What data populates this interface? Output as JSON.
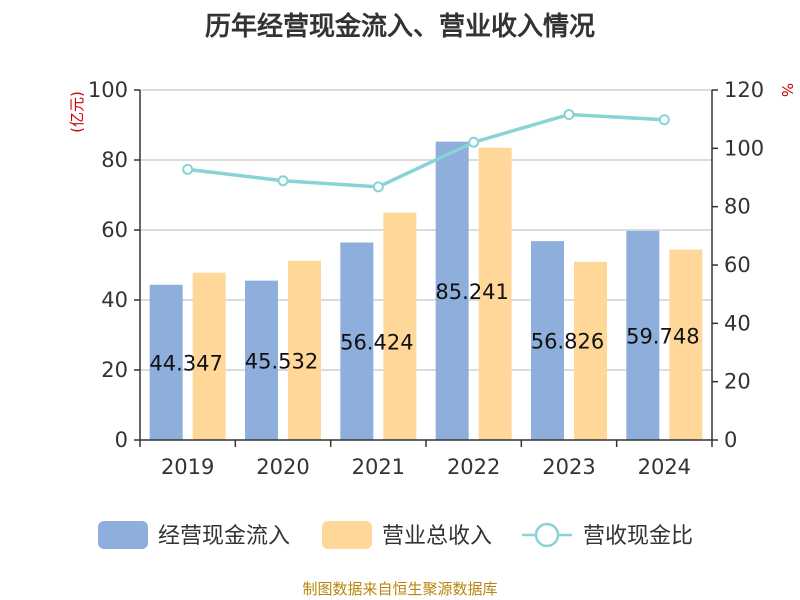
{
  "chart_data": {
    "type": "bar",
    "title": "历年经营现金流入、营业收入情况",
    "categories": [
      "2019",
      "2020",
      "2021",
      "2022",
      "2023",
      "2024"
    ],
    "series": [
      {
        "name": "经营现金流入",
        "type": "bar",
        "axis": "left",
        "color": "#8eaedb",
        "values": [
          44.347,
          45.532,
          56.424,
          85.241,
          56.826,
          59.748
        ],
        "labels": [
          "44.347",
          "45.532",
          "56.424",
          "85.241",
          "56.826",
          "59.748"
        ]
      },
      {
        "name": "营业总收入",
        "type": "bar",
        "axis": "left",
        "color": "#ffd899",
        "values": [
          47.8,
          51.2,
          65.0,
          83.5,
          50.9,
          54.4
        ]
      },
      {
        "name": "营收现金比",
        "type": "line",
        "axis": "right",
        "color": "#88d3d5",
        "values": [
          92.8,
          88.9,
          86.8,
          102.1,
          111.6,
          109.8
        ]
      }
    ],
    "y_left": {
      "label": "(亿元)",
      "range": [
        0,
        100
      ],
      "ticks": [
        0,
        20,
        40,
        60,
        80,
        100
      ]
    },
    "y_right": {
      "label": "%",
      "range": [
        0,
        120
      ],
      "ticks": [
        0,
        20,
        40,
        60,
        80,
        100,
        120
      ]
    },
    "grid": true,
    "legend_position": "bottom"
  },
  "source_note": "制图数据来自恒生聚源数据库"
}
